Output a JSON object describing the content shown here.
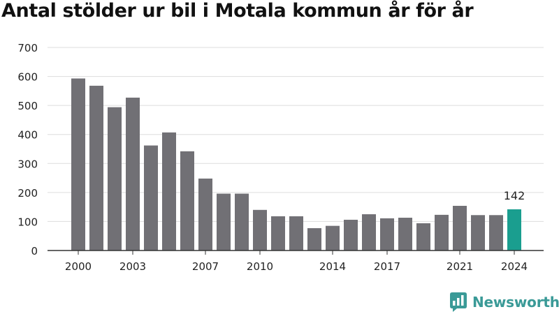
{
  "title": "Antal stölder ur bil i Motala kommun år för år",
  "brand": {
    "name": "Newsworthy",
    "icon": "newsworthy-logo-icon",
    "color": "#3a9a97"
  },
  "chart_data": {
    "type": "bar",
    "title": "Antal stölder ur bil i Motala kommun år för år",
    "xlabel": "",
    "ylabel": "",
    "categories": [
      "2000",
      "2001",
      "2002",
      "2003",
      "2004",
      "2005",
      "2006",
      "2007",
      "2008",
      "2009",
      "2010",
      "2011",
      "2012",
      "2013",
      "2014",
      "2015",
      "2016",
      "2017",
      "2018",
      "2019",
      "2020",
      "2021",
      "2022",
      "2023",
      "2024"
    ],
    "values": [
      593,
      568,
      494,
      527,
      362,
      407,
      342,
      248,
      196,
      196,
      140,
      118,
      118,
      77,
      85,
      106,
      125,
      111,
      113,
      94,
      123,
      154,
      122,
      122,
      142
    ],
    "x_tick_labels": [
      "2000",
      "2003",
      "2007",
      "2010",
      "2014",
      "2017",
      "2021",
      "2024"
    ],
    "y_ticks": [
      0,
      100,
      200,
      300,
      400,
      500,
      600,
      700
    ],
    "ylim": [
      0,
      700
    ],
    "grid": true,
    "highlight": {
      "category": "2024",
      "label": "142"
    },
    "colors": {
      "bar": "#717075",
      "highlight": "#1a9e8f",
      "grid": "#dddddd",
      "axis": "#333333"
    }
  }
}
